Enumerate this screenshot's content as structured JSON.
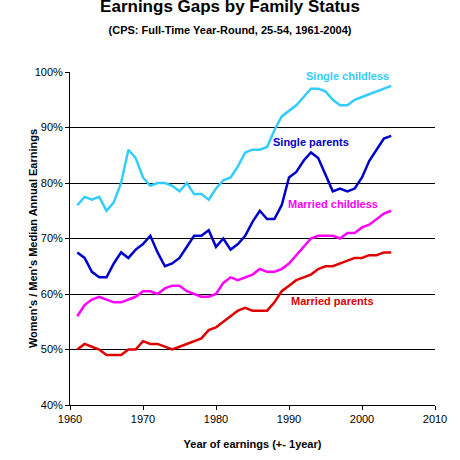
{
  "chart_data": {
    "type": "line",
    "title": "Earnings Gaps by Family Status",
    "subtitle": "(CPS: Full-Time Year-Round, 25-54, 1961-2004)",
    "x_label": "Year of earnings (+- 1year)",
    "y_label": "Women's / Men's Median Annual Earnings",
    "x": [
      1961,
      1962,
      1963,
      1964,
      1965,
      1966,
      1967,
      1968,
      1969,
      1970,
      1971,
      1972,
      1973,
      1974,
      1975,
      1976,
      1977,
      1978,
      1979,
      1980,
      1981,
      1982,
      1983,
      1984,
      1985,
      1986,
      1987,
      1988,
      1989,
      1990,
      1991,
      1992,
      1993,
      1994,
      1995,
      1996,
      1997,
      1998,
      1999,
      2000,
      2001,
      2002,
      2003,
      2004
    ],
    "series": [
      {
        "name": "Single childless",
        "color": "#33ccff",
        "values": [
          76,
          77.5,
          77,
          77.5,
          75,
          76.5,
          80,
          86,
          84.5,
          81,
          79.5,
          80,
          80,
          79.5,
          78.5,
          80,
          78,
          78,
          77,
          79,
          80.5,
          81,
          83,
          85.5,
          86,
          86,
          86.5,
          89.5,
          92,
          93,
          94,
          95.5,
          97,
          97,
          96.5,
          95,
          94,
          94,
          95,
          95.5,
          96,
          96.5,
          97,
          97.5
        ]
      },
      {
        "name": "Single parents",
        "color": "#0000cc",
        "values": [
          67.5,
          66.5,
          64,
          63,
          63,
          65.5,
          67.5,
          66.5,
          68,
          69,
          70.5,
          67.5,
          65,
          65.5,
          66.5,
          68.5,
          70.5,
          70.5,
          71.5,
          68.5,
          70,
          68,
          69,
          70.5,
          73,
          75,
          73.5,
          73.5,
          76,
          81,
          82,
          84,
          85.5,
          84.5,
          81.5,
          78.5,
          79,
          78.5,
          79,
          81,
          84,
          86,
          88,
          88.5
        ]
      },
      {
        "name": "Married childless",
        "color": "#ff00ff",
        "values": [
          56,
          58,
          59,
          59.5,
          59,
          58.5,
          58.5,
          59,
          59.5,
          60.5,
          60.5,
          60,
          61,
          61.5,
          61.5,
          60.5,
          60,
          59.5,
          59.5,
          60,
          62,
          63,
          62.5,
          63,
          63.5,
          64.5,
          64,
          64,
          64.5,
          65.5,
          67,
          68.5,
          70,
          70.5,
          70.5,
          70.5,
          70,
          71,
          71,
          72,
          72.5,
          73.5,
          74.5,
          75
        ]
      },
      {
        "name": "Married parents",
        "color": "#e00000",
        "values": [
          50,
          51,
          50.5,
          50,
          49,
          49,
          49,
          50,
          50,
          51.5,
          51,
          51,
          50.5,
          50,
          50.5,
          51,
          51.5,
          52,
          53.5,
          54,
          55,
          56,
          57,
          57.5,
          57,
          57,
          57,
          58.5,
          60.5,
          61.5,
          62.5,
          63,
          63.5,
          64.5,
          65,
          65,
          65.5,
          66,
          66.5,
          66.5,
          67,
          67,
          67.5,
          67.5
        ]
      }
    ],
    "xlim": [
      1960,
      2010
    ],
    "xticks": [
      1960,
      1970,
      1980,
      1990,
      2000,
      2010
    ],
    "ylim": [
      40,
      100
    ],
    "yticks": [
      {
        "value": 40,
        "label": "40%"
      },
      {
        "value": 50,
        "label": "50%"
      },
      {
        "value": 60,
        "label": "60%"
      },
      {
        "value": 70,
        "label": "70%"
      },
      {
        "value": 80,
        "label": "80%"
      },
      {
        "value": 90,
        "label": "90%"
      },
      {
        "value": 100,
        "label": "100%"
      }
    ],
    "grid": true
  }
}
